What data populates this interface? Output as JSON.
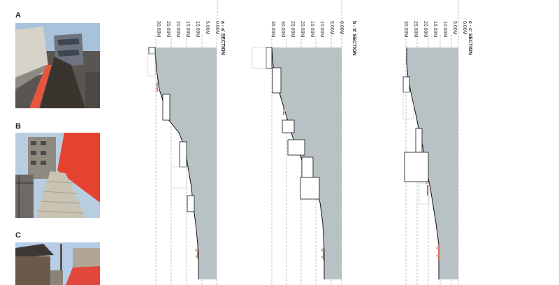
{
  "photos": [
    {
      "label": "A",
      "wall_color": "#e8553f"
    },
    {
      "label": "B",
      "wall_color": "#e5432f"
    },
    {
      "label": "C",
      "wall_color": "#e1473a"
    }
  ],
  "sections": [
    {
      "title": "a - a' SECTION",
      "ticks": [
        "30.00M",
        "25.00M",
        "20.00M",
        "15.00M",
        "10.00M",
        "5.00M",
        "0.00M"
      ]
    },
    {
      "title": "b - b' SECTION",
      "ticks": [
        "35.00M",
        "30.00M",
        "25.00M",
        "20.00M",
        "15.00M",
        "10.00M",
        "5.00M",
        "0.00M"
      ]
    },
    {
      "title": "c - c' SECTION",
      "ticks": [
        "30.00M",
        "25.00M",
        "20.00M",
        "15.00M",
        "10.00M",
        "5.00M",
        "0.00M"
      ]
    }
  ],
  "colors": {
    "ground": "#b8c2c4",
    "grid": "#9a9a9a",
    "accent": "#e03a2a"
  }
}
